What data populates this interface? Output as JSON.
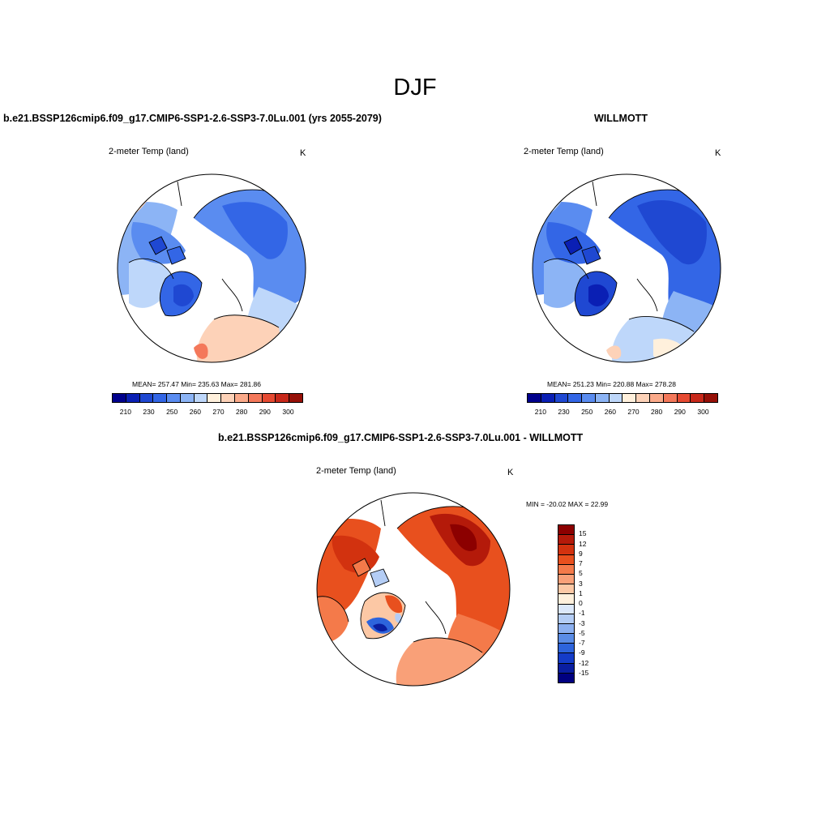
{
  "main_title": "DJF",
  "panels": {
    "model": {
      "title": "b.e21.BSSP126cmip6.f09_g17.CMIP6-SSP1-2.6-SSP3-7.0Lu.001 (yrs 2055-2079)",
      "subtitle_left": "2-meter Temp (land)",
      "subtitle_right": "K",
      "stats": "MEAN= 257.47  Min= 235.63  Max= 281.86",
      "colorbar_ticks": [
        "210",
        "230",
        "250",
        "260",
        "270",
        "280",
        "290",
        "300"
      ]
    },
    "obs": {
      "title": "WILLMOTT",
      "subtitle_left": "2-meter Temp (land)",
      "subtitle_right": "K",
      "stats": "MEAN= 251.23  Min= 220.88  Max= 278.28",
      "colorbar_ticks": [
        "210",
        "230",
        "250",
        "260",
        "270",
        "280",
        "290",
        "300"
      ]
    },
    "diff": {
      "title": "b.e21.BSSP126cmip6.f09_g17.CMIP6-SSP1-2.6-SSP3-7.0Lu.001 - WILLMOTT",
      "subtitle_left": "2-meter Temp (land)",
      "subtitle_right": "K",
      "minmax": "MIN = -20.02 MAX =  22.99",
      "colorbar_ticks": [
        "15",
        "12",
        "9",
        "7",
        "5",
        "3",
        "1",
        "0",
        "-1",
        "-3",
        "-5",
        "-7",
        "-9",
        "-12",
        "-15"
      ]
    }
  },
  "colors": {
    "abs_scale": [
      "#00008c",
      "#0a1fb4",
      "#1f48d2",
      "#3366e6",
      "#5a8cf0",
      "#8cb4f5",
      "#bed7fa",
      "#fff0dc",
      "#fdd2b8",
      "#fbaa8a",
      "#f4785a",
      "#e64a32",
      "#c8281a",
      "#961008"
    ],
    "diff_scale": [
      "#8c0000",
      "#b41a0a",
      "#d2320f",
      "#e8501e",
      "#f47a4a",
      "#f9a078",
      "#fcc8a5",
      "#fff0dc",
      "#dce8fa",
      "#b4cdf5",
      "#8cb0f0",
      "#5a8ce6",
      "#2d64dc",
      "#143cc8",
      "#0a1ea0",
      "#000080"
    ]
  }
}
